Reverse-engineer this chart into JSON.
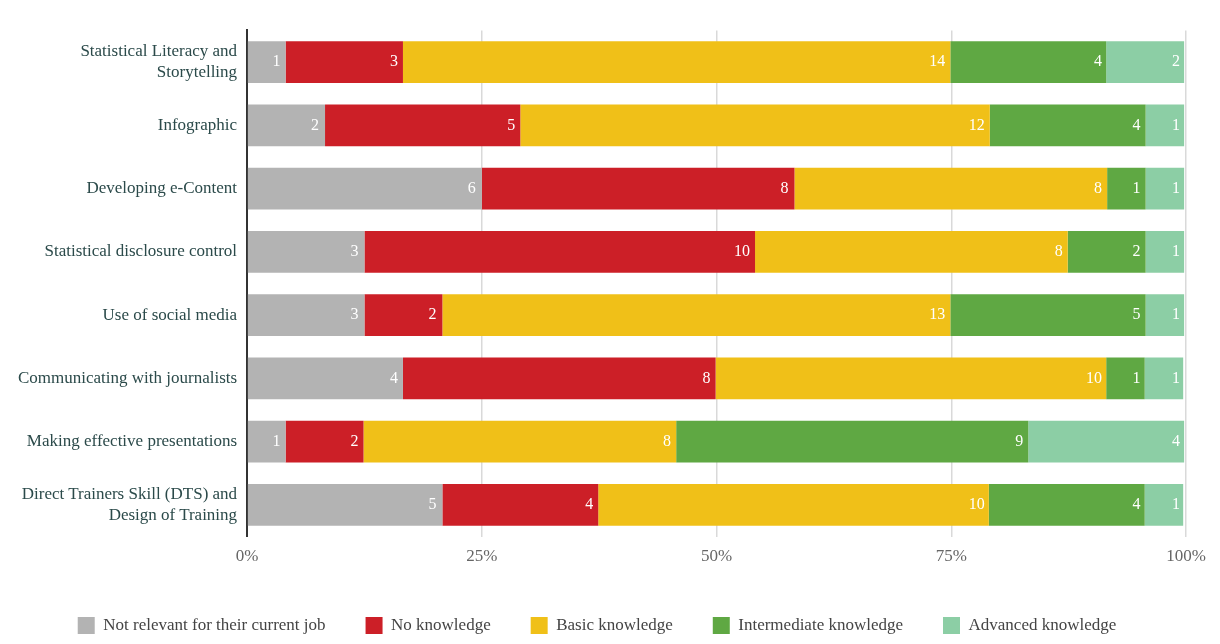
{
  "chart_data": {
    "type": "bar",
    "orientation": "horizontal",
    "stacked": true,
    "categories": [
      "Statistical Literacy and Storytelling",
      "Infographic",
      "Developing e-Content",
      "Statistical disclosure control",
      "Use of social media",
      "Communicating with journalists",
      "Making effective presentations",
      "Direct Trainers Skill (DTS) and Design of Training"
    ],
    "series": [
      {
        "name": "Not relevant for their current job",
        "color": "#b3b3b3",
        "values": [
          4.1,
          8.3,
          25,
          12.5,
          12.5,
          16.6,
          4.1,
          20.8
        ]
      },
      {
        "name": "No knowledge",
        "color": "#cc1f27",
        "values": [
          12.5,
          20.8,
          33.3,
          41.6,
          8.3,
          33.3,
          8.3,
          16.6
        ]
      },
      {
        "name": "Basic knowledge",
        "color": "#f0c018",
        "values": [
          58.3,
          50,
          33.3,
          33.3,
          54.1,
          41.6,
          33.3,
          41.6
        ]
      },
      {
        "name": "Intermediate knowledge",
        "color": "#5fa843",
        "values": [
          16.6,
          16.6,
          4.1,
          8.3,
          20.8,
          4.1,
          37.5,
          16.6
        ]
      },
      {
        "name": "Advanced knowledge",
        "color": "#8ccea5",
        "values": [
          8.3,
          4.1,
          4.1,
          4.1,
          4.1,
          4.1,
          16.6,
          4.1
        ]
      }
    ],
    "xlim": [
      0,
      100
    ],
    "xticks": [
      {
        "value": 0,
        "label": "0%"
      },
      {
        "value": 25,
        "label": "25%"
      },
      {
        "value": 50,
        "label": "50%"
      },
      {
        "value": 75,
        "label": "75%"
      },
      {
        "value": 100,
        "label": "100%"
      }
    ],
    "annotations": [
      {
        "text": "1",
        "x": 4.2,
        "y": "Statistical Literacy and Storytelling"
      },
      {
        "text": "3",
        "x": 16.7,
        "y": "Statistical Literacy and Storytelling"
      },
      {
        "text": "14",
        "x": 75,
        "y": "Statistical Literacy and Storytelling"
      },
      {
        "text": "4",
        "x": 91.7,
        "y": "Statistical Literacy and Storytelling"
      },
      {
        "text": "2",
        "x": 100,
        "y": "Statistical Literacy and Storytelling"
      },
      {
        "text": "2",
        "x": 8.3,
        "y": "Infographic"
      },
      {
        "text": "5",
        "x": 29.2,
        "y": "Infographic"
      },
      {
        "text": "12",
        "x": 79.2,
        "y": "Infographic"
      },
      {
        "text": "4",
        "x": 95.8,
        "y": "Infographic"
      },
      {
        "text": "1",
        "x": 100,
        "y": "Infographic"
      },
      {
        "text": "6",
        "x": 25,
        "y": "Developing e-Content"
      },
      {
        "text": "8",
        "x": 58.3,
        "y": "Developing e-Content"
      },
      {
        "text": "8",
        "x": 91.7,
        "y": "Developing e-Content"
      },
      {
        "text": "1",
        "x": 95.8,
        "y": "Developing e-Content"
      },
      {
        "text": "1",
        "x": 100,
        "y": "Developing e-Content"
      },
      {
        "text": "3",
        "x": 12.5,
        "y": "Statistical disclosure control"
      },
      {
        "text": "10",
        "x": 54.2,
        "y": "Statistical disclosure control"
      },
      {
        "text": "8",
        "x": 87.5,
        "y": "Statistical disclosure control"
      },
      {
        "text": "2",
        "x": 95.8,
        "y": "Statistical disclosure control"
      },
      {
        "text": "1",
        "x": 100,
        "y": "Statistical disclosure control"
      },
      {
        "text": "3",
        "x": 12.5,
        "y": "Use of social media"
      },
      {
        "text": "2",
        "x": 20.8,
        "y": "Use of social media"
      },
      {
        "text": "13",
        "x": 75,
        "y": "Use of social media"
      },
      {
        "text": "5",
        "x": 95.8,
        "y": "Use of social media"
      },
      {
        "text": "1",
        "x": 100,
        "y": "Use of social media"
      },
      {
        "text": "4",
        "x": 16.7,
        "y": "Communicating with journalists"
      },
      {
        "text": "8",
        "x": 50,
        "y": "Communicating with journalists"
      },
      {
        "text": "10",
        "x": 91.7,
        "y": "Communicating with journalists"
      },
      {
        "text": "1",
        "x": 95.8,
        "y": "Communicating with journalists"
      },
      {
        "text": "1",
        "x": 100,
        "y": "Communicating with journalists"
      },
      {
        "text": "1",
        "x": 4.2,
        "y": "Making effective presentations"
      },
      {
        "text": "2",
        "x": 12.5,
        "y": "Making effective presentations"
      },
      {
        "text": "8",
        "x": 45.8,
        "y": "Making effective presentations"
      },
      {
        "text": "9",
        "x": 83.3,
        "y": "Making effective presentations"
      },
      {
        "text": "4",
        "x": 100,
        "y": "Making effective presentations"
      },
      {
        "text": "5",
        "x": 20.8,
        "y": "Direct Trainers Skill (DTS) and Design of Training"
      },
      {
        "text": "4",
        "x": 37.5,
        "y": "Direct Trainers Skill (DTS) and Design of Training"
      },
      {
        "text": "10",
        "x": 79.2,
        "y": "Direct Trainers Skill (DTS) and Design of Training"
      },
      {
        "text": "4",
        "x": 95.8,
        "y": "Direct Trainers Skill (DTS) and Design of Training"
      },
      {
        "text": "1",
        "x": 100,
        "y": "Direct Trainers Skill (DTS) and Design of Training"
      }
    ],
    "grid": "x",
    "legend": "bottom"
  }
}
